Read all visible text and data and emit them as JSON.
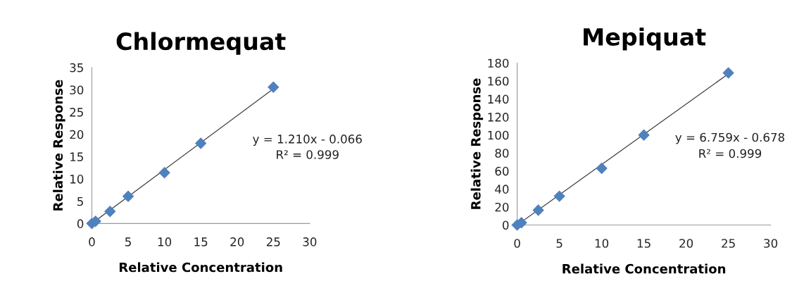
{
  "chart_data": [
    {
      "type": "scatter",
      "title": "Chlormequat",
      "xlabel": "Relative Concentration",
      "ylabel": "Relative Response",
      "xlim": [
        0,
        30
      ],
      "xticks": [
        0,
        5,
        10,
        15,
        20,
        25,
        30
      ],
      "ylim": [
        0,
        35
      ],
      "yticks": [
        0,
        5,
        10,
        15,
        20,
        25,
        30,
        35
      ],
      "grid": false,
      "legend": false,
      "series": [
        {
          "type": "scatter",
          "marker": "diamond",
          "color": "#4f81bd",
          "x": [
            0,
            0.5,
            2.5,
            5,
            10,
            15,
            25
          ],
          "values": [
            0,
            0.5,
            2.7,
            6.1,
            11.4,
            18,
            30.6
          ]
        },
        {
          "type": "line",
          "marker": "none",
          "line_style": "solid",
          "color": "#404040",
          "x": [
            0,
            25
          ],
          "values": [
            0,
            30.2
          ]
        }
      ],
      "annotations": [
        "y = 1.210x - 0.066",
        "R² = 0.999"
      ]
    },
    {
      "type": "scatter",
      "title": "Mepiquat",
      "xlabel": "Relative Concentration",
      "ylabel": "Relative Response",
      "xlim": [
        0,
        30
      ],
      "xticks": [
        0,
        5,
        10,
        15,
        20,
        25,
        30
      ],
      "ylim": [
        0,
        180
      ],
      "yticks": [
        0,
        20,
        40,
        60,
        80,
        100,
        120,
        140,
        160,
        180
      ],
      "grid": false,
      "legend": false,
      "series": [
        {
          "type": "scatter",
          "marker": "diamond",
          "color": "#4f81bd",
          "x": [
            0,
            0.5,
            2.5,
            5,
            10,
            15,
            25
          ],
          "values": [
            0,
            2.5,
            16.5,
            32,
            63,
            100,
            169
          ]
        },
        {
          "type": "line",
          "marker": "none",
          "line_style": "solid",
          "color": "#404040",
          "x": [
            0,
            25
          ],
          "values": [
            0,
            168
          ]
        }
      ],
      "annotations": [
        "y = 6.759x - 0.678",
        "R² = 0.999"
      ]
    }
  ]
}
